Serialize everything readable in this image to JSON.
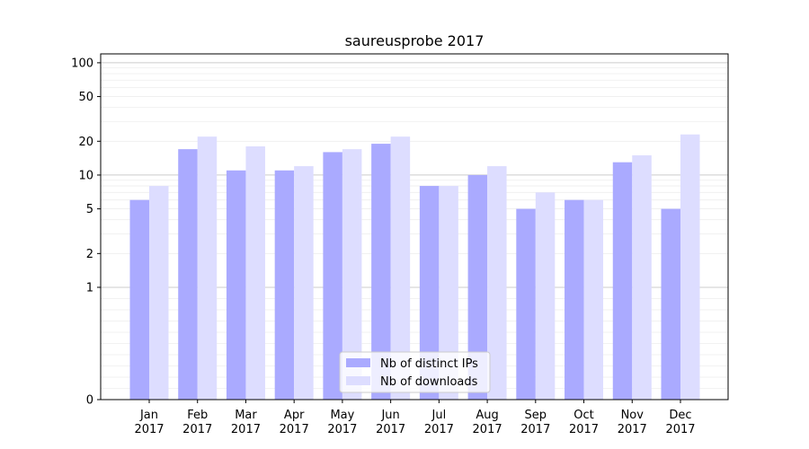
{
  "chart_data": {
    "type": "bar",
    "title": "saureusprobe 2017",
    "xlabel": "",
    "ylabel": "",
    "categories": [
      "Jan\n2017",
      "Feb\n2017",
      "Mar\n2017",
      "Apr\n2017",
      "May\n2017",
      "Jun\n2017",
      "Jul\n2017",
      "Aug\n2017",
      "Sep\n2017",
      "Oct\n2017",
      "Nov\n2017",
      "Dec\n2017"
    ],
    "series": [
      {
        "name": "Nb of distinct IPs",
        "color": "#aaaaff",
        "values": [
          6,
          17,
          11,
          11,
          16,
          19,
          8,
          10,
          5,
          6,
          13,
          5
        ]
      },
      {
        "name": "Nb of downloads",
        "color": "#ddddff",
        "values": [
          8,
          22,
          18,
          12,
          17,
          22,
          8,
          12,
          7,
          6,
          15,
          23
        ]
      }
    ],
    "y_scale": "symlog",
    "ylim": [
      0,
      120
    ],
    "y_ticks": [
      0,
      1,
      2,
      5,
      10,
      20,
      50,
      100
    ],
    "y_tick_labels": [
      "0",
      "1",
      "2",
      "5",
      "10",
      "20",
      "50",
      "100"
    ],
    "grid": {
      "major_lines_at": [
        1,
        10,
        100
      ],
      "minor_lines": true
    },
    "legend": {
      "placement": "lower-center"
    },
    "colors": {
      "axis": "#000000",
      "major_grid": "#cccccc",
      "minor_grid": "#eeeeee"
    }
  }
}
